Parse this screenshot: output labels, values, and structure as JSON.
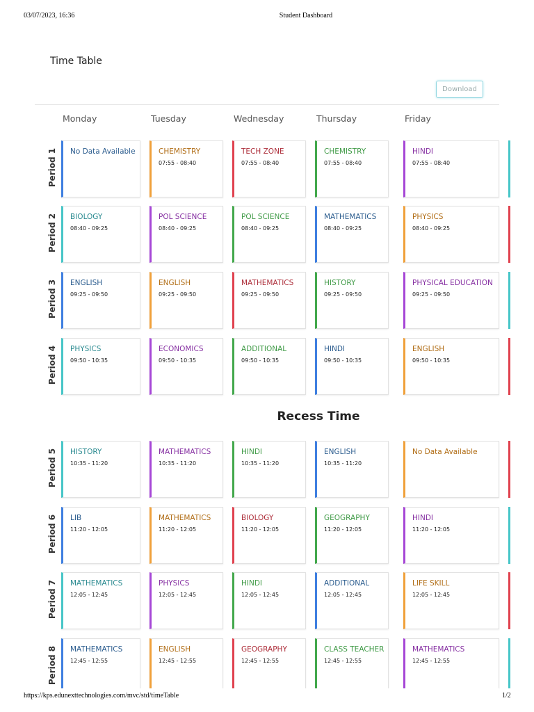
{
  "header": {
    "datetime": "03/07/2023, 16:36",
    "title": "Student Dashboard"
  },
  "page_title": "Time Table",
  "download_button": "Download",
  "days": [
    "Monday",
    "Tuesday",
    "Wednesday",
    "Thursday",
    "Friday"
  ],
  "recess": "Recess Time",
  "periods": [
    {
      "label": "Period 1",
      "next_color": "teal",
      "cells": [
        {
          "subject": "No Data Available",
          "color": "blue"
        },
        {
          "subject": "CHEMISTRY",
          "time": "07:55 - 08:40",
          "color": "orange"
        },
        {
          "subject": "TECH ZONE",
          "time": "07:55 - 08:40",
          "color": "red"
        },
        {
          "subject": "CHEMISTRY",
          "time": "07:55 - 08:40",
          "color": "green"
        },
        {
          "subject": "HINDI",
          "time": "07:55 - 08:40",
          "color": "purple"
        }
      ]
    },
    {
      "label": "Period 2",
      "next_color": "red",
      "cells": [
        {
          "subject": "BIOLOGY",
          "time": "08:40 - 09:25",
          "color": "teal"
        },
        {
          "subject": "POL SCIENCE",
          "time": "08:40 - 09:25",
          "color": "purple"
        },
        {
          "subject": "POL SCIENCE",
          "time": "08:40 - 09:25",
          "color": "green"
        },
        {
          "subject": "MATHEMATICS",
          "time": "08:40 - 09:25",
          "color": "blue"
        },
        {
          "subject": "PHYSICS",
          "time": "08:40 - 09:25",
          "color": "orange"
        }
      ]
    },
    {
      "label": "Period 3",
      "next_color": "teal",
      "cells": [
        {
          "subject": "ENGLISH",
          "time": "09:25 - 09:50",
          "color": "blue"
        },
        {
          "subject": "ENGLISH",
          "time": "09:25 - 09:50",
          "color": "orange"
        },
        {
          "subject": "MATHEMATICS",
          "time": "09:25 - 09:50",
          "color": "red"
        },
        {
          "subject": "HISTORY",
          "time": "09:25 - 09:50",
          "color": "green"
        },
        {
          "subject": "PHYSICAL EDUCATION",
          "time": "09:25 - 09:50",
          "color": "purple"
        }
      ]
    },
    {
      "label": "Period 4",
      "next_color": "red",
      "cells": [
        {
          "subject": "PHYSICS",
          "time": "09:50 - 10:35",
          "color": "teal"
        },
        {
          "subject": "ECONOMICS",
          "time": "09:50 - 10:35",
          "color": "purple"
        },
        {
          "subject": "ADDITIONAL",
          "time": "09:50 - 10:35",
          "color": "green"
        },
        {
          "subject": "HINDI",
          "time": "09:50 - 10:35",
          "color": "blue"
        },
        {
          "subject": "ENGLISH",
          "time": "09:50 - 10:35",
          "color": "orange"
        }
      ]
    },
    {
      "label": "Period 5",
      "next_color": "red",
      "cells": [
        {
          "subject": "HISTORY",
          "time": "10:35 - 11:20",
          "color": "teal"
        },
        {
          "subject": "MATHEMATICS",
          "time": "10:35 - 11:20",
          "color": "purple"
        },
        {
          "subject": "HINDI",
          "time": "10:35 - 11:20",
          "color": "green"
        },
        {
          "subject": "ENGLISH",
          "time": "10:35 - 11:20",
          "color": "blue"
        },
        {
          "subject": "No Data Available",
          "color": "orange"
        }
      ]
    },
    {
      "label": "Period 6",
      "next_color": "teal",
      "cells": [
        {
          "subject": "LIB",
          "time": "11:20 - 12:05",
          "color": "blue"
        },
        {
          "subject": "MATHEMATICS",
          "time": "11:20 - 12:05",
          "color": "orange"
        },
        {
          "subject": "BIOLOGY",
          "time": "11:20 - 12:05",
          "color": "red"
        },
        {
          "subject": "GEOGRAPHY",
          "time": "11:20 - 12:05",
          "color": "green"
        },
        {
          "subject": "HINDI",
          "time": "11:20 - 12:05",
          "color": "purple"
        }
      ]
    },
    {
      "label": "Period 7",
      "next_color": "red",
      "cells": [
        {
          "subject": "MATHEMATICS",
          "time": "12:05 - 12:45",
          "color": "teal"
        },
        {
          "subject": "PHYSICS",
          "time": "12:05 - 12:45",
          "color": "purple"
        },
        {
          "subject": "HINDI",
          "time": "12:05 - 12:45",
          "color": "green"
        },
        {
          "subject": "ADDITIONAL",
          "time": "12:05 - 12:45",
          "color": "blue"
        },
        {
          "subject": "LIFE SKILL",
          "time": "12:05 - 12:45",
          "color": "orange"
        }
      ]
    },
    {
      "label": "Period 8",
      "next_color": "teal",
      "cells": [
        {
          "subject": "MATHEMATICS",
          "time": "12:45 - 12:55",
          "color": "blue"
        },
        {
          "subject": "ENGLISH",
          "time": "12:45 - 12:55",
          "color": "orange"
        },
        {
          "subject": "GEOGRAPHY",
          "time": "12:45 - 12:55",
          "color": "red"
        },
        {
          "subject": "CLASS TEACHER",
          "time": "12:45 - 12:55",
          "color": "green"
        },
        {
          "subject": "MATHEMATICS",
          "time": "12:45 - 12:55",
          "color": "purple"
        }
      ]
    }
  ],
  "footer": {
    "url": "https://kps.edunexttechnologies.com/mvc/std/timeTable",
    "page": "1/2"
  }
}
